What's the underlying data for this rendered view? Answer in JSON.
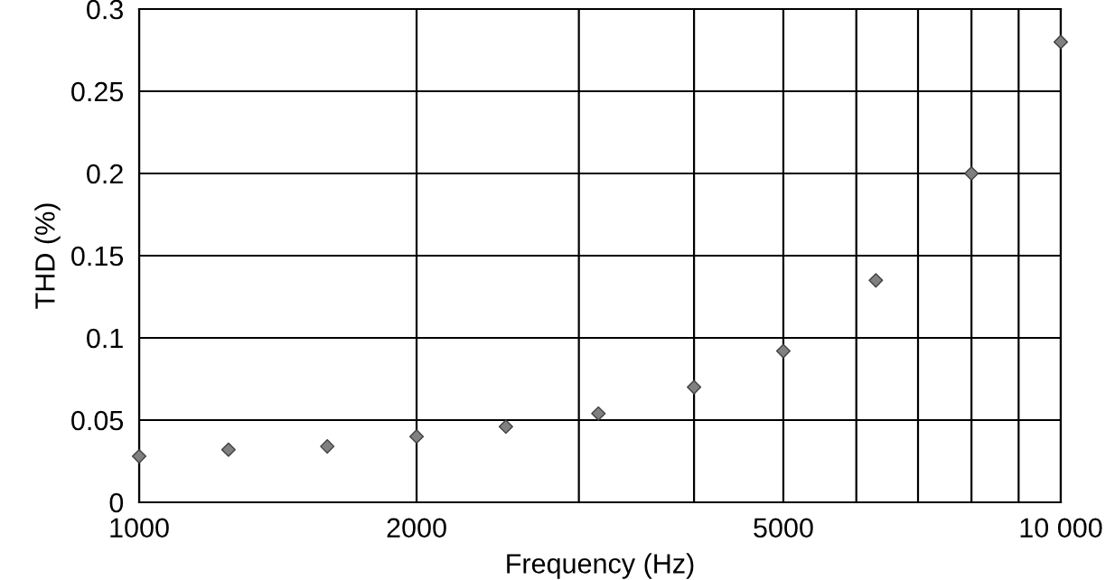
{
  "chart_data": {
    "type": "scatter",
    "xlabel": "Frequency (Hz)",
    "ylabel": "THD (%)",
    "x": [
      1000,
      1250,
      1600,
      2000,
      2500,
      3150,
      4000,
      5000,
      6300,
      8000,
      10000
    ],
    "values": [
      0.028,
      0.032,
      0.034,
      0.04,
      0.046,
      0.054,
      0.07,
      0.092,
      0.135,
      0.2,
      0.28
    ],
    "color": "#808080",
    "marker": "diamond",
    "log": "x",
    "xlim": [
      1000,
      10000
    ],
    "xticks": [
      1000,
      2000,
      {
        "value": 3000,
        "label": null
      },
      {
        "value": 4000,
        "label": null
      },
      5000,
      {
        "value": 6000,
        "label": null
      },
      {
        "value": 7000,
        "label": null
      },
      {
        "value": 8000,
        "label": null
      },
      {
        "value": 9000,
        "label": null
      },
      {
        "value": 10000,
        "label": "10 000"
      }
    ],
    "ylim": [
      0,
      0.3
    ],
    "yticks": [
      0,
      0.05,
      0.1,
      0.15,
      0.2,
      0.25,
      0.3
    ],
    "grid": true
  }
}
